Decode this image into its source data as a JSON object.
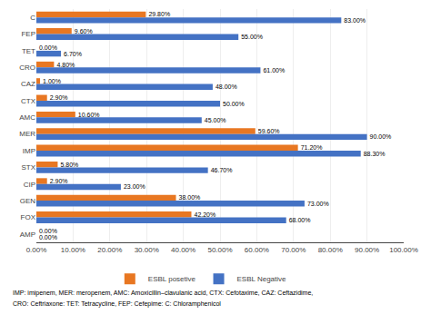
{
  "chart_data": {
    "type": "bar",
    "orientation": "horizontal",
    "categories": [
      "C",
      "FEP",
      "TET",
      "CRO",
      "CAZ",
      "CTX",
      "AMC",
      "MER",
      "IMP",
      "STX",
      "CIP",
      "GEN",
      "FOX",
      "AMP"
    ],
    "series": [
      {
        "name": "ESBL posetive",
        "color": "#E87722",
        "values": [
          29.8,
          9.6,
          0.0,
          4.8,
          1.0,
          2.9,
          10.6,
          59.6,
          71.2,
          5.8,
          2.9,
          38.0,
          42.2,
          0.0
        ],
        "value_labels": [
          "29.80%",
          "9.60%",
          "0.00%",
          "4.80%",
          "1.00%",
          "2.90%",
          "10.60%",
          "59.60%",
          "71.20%",
          "5.80%",
          "2.90%",
          "38.00%",
          "42.20%",
          "0.00%"
        ]
      },
      {
        "name": "ESBL Negative",
        "color": "#4472C4",
        "values": [
          83.0,
          55.0,
          6.7,
          61.0,
          48.0,
          50.0,
          45.0,
          90.0,
          88.3,
          46.7,
          23.0,
          73.0,
          68.0,
          0.0
        ],
        "value_labels": [
          "83.00%",
          "55.00%",
          "6.70%",
          "61.00%",
          "48.00%",
          "50.00%",
          "45.00%",
          "90.00%",
          "88.30%",
          "46.70%",
          "23.00%",
          "73.00%",
          "68.00%",
          "0.00%"
        ]
      }
    ],
    "xlim": [
      0,
      100
    ],
    "xticks": [
      {
        "value": 0,
        "label": "0.00%"
      },
      {
        "value": 10,
        "label": "10.00%"
      },
      {
        "value": 20,
        "label": "20.00%"
      },
      {
        "value": 30,
        "label": "30.00%"
      },
      {
        "value": 40,
        "label": "40.00%"
      },
      {
        "value": 50,
        "label": "50.00%"
      },
      {
        "value": 60,
        "label": "60.00%"
      },
      {
        "value": 70,
        "label": "70.00%"
      },
      {
        "value": 80,
        "label": "80.00%"
      },
      {
        "value": 90,
        "label": "90.00%"
      },
      {
        "value": 100,
        "label": "100.00%"
      }
    ],
    "grid": true,
    "legend": "bottom",
    "data_labels": true,
    "annotations": [
      "IMP: imipenem, MER: meropenem, AMC: Amoxicillin–clavulanic acid, CTX: Cefotaxime, CAZ: Ceftazidime,",
      "CRO: Ceftriaxone: TET: Tetracycline, FEP: Cefepime: C: Chloramphenicol"
    ]
  }
}
